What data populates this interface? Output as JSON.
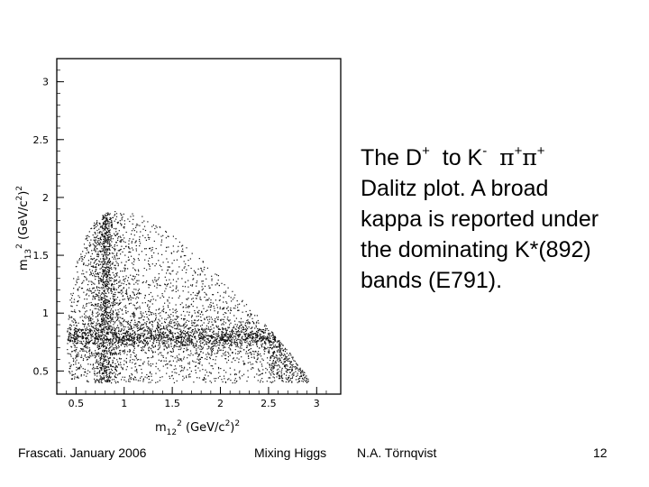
{
  "caption": {
    "line1": {
      "prefix": "The D",
      "d_charge": "+",
      "to_k": "to K",
      "k_charge": "-",
      "pi1": "π",
      "pi1_charge": "+",
      "pi2": "π",
      "pi2_charge": "+"
    },
    "line2": "Dalitz plot. A broad",
    "line3": "kappa is reported under",
    "line4_a": "the dominating K",
    "line4_star": "*",
    "line4_b": "(892)",
    "line5": "bands (E791)."
  },
  "footer": {
    "left": "Frascati. January 2006",
    "center": "Mixing Higgs",
    "author": "N.A. Törnqvist",
    "page": "12"
  },
  "chart_data": {
    "type": "scatter",
    "description": "D+ → K- π+ π+ Dalitz plot (E791)",
    "xlabel": "m12² (GeV/c²)²",
    "ylabel": "m13² (GeV/c²)²",
    "xlim": [
      0.3,
      3.25
    ],
    "ylim": [
      0.3,
      3.2
    ],
    "xticks": [
      "0.5",
      "1",
      "1.5",
      "2",
      "2.5",
      "3"
    ],
    "yticks": [
      "0.5",
      "1",
      "1.5",
      "2",
      "2.5",
      "3"
    ],
    "density_bands": [
      {
        "name": "K*(892) band in m12²",
        "x": 0.8
      },
      {
        "name": "K*(892) band in m13²",
        "y": 0.8
      }
    ],
    "grid": false,
    "point_color": "#111111"
  }
}
